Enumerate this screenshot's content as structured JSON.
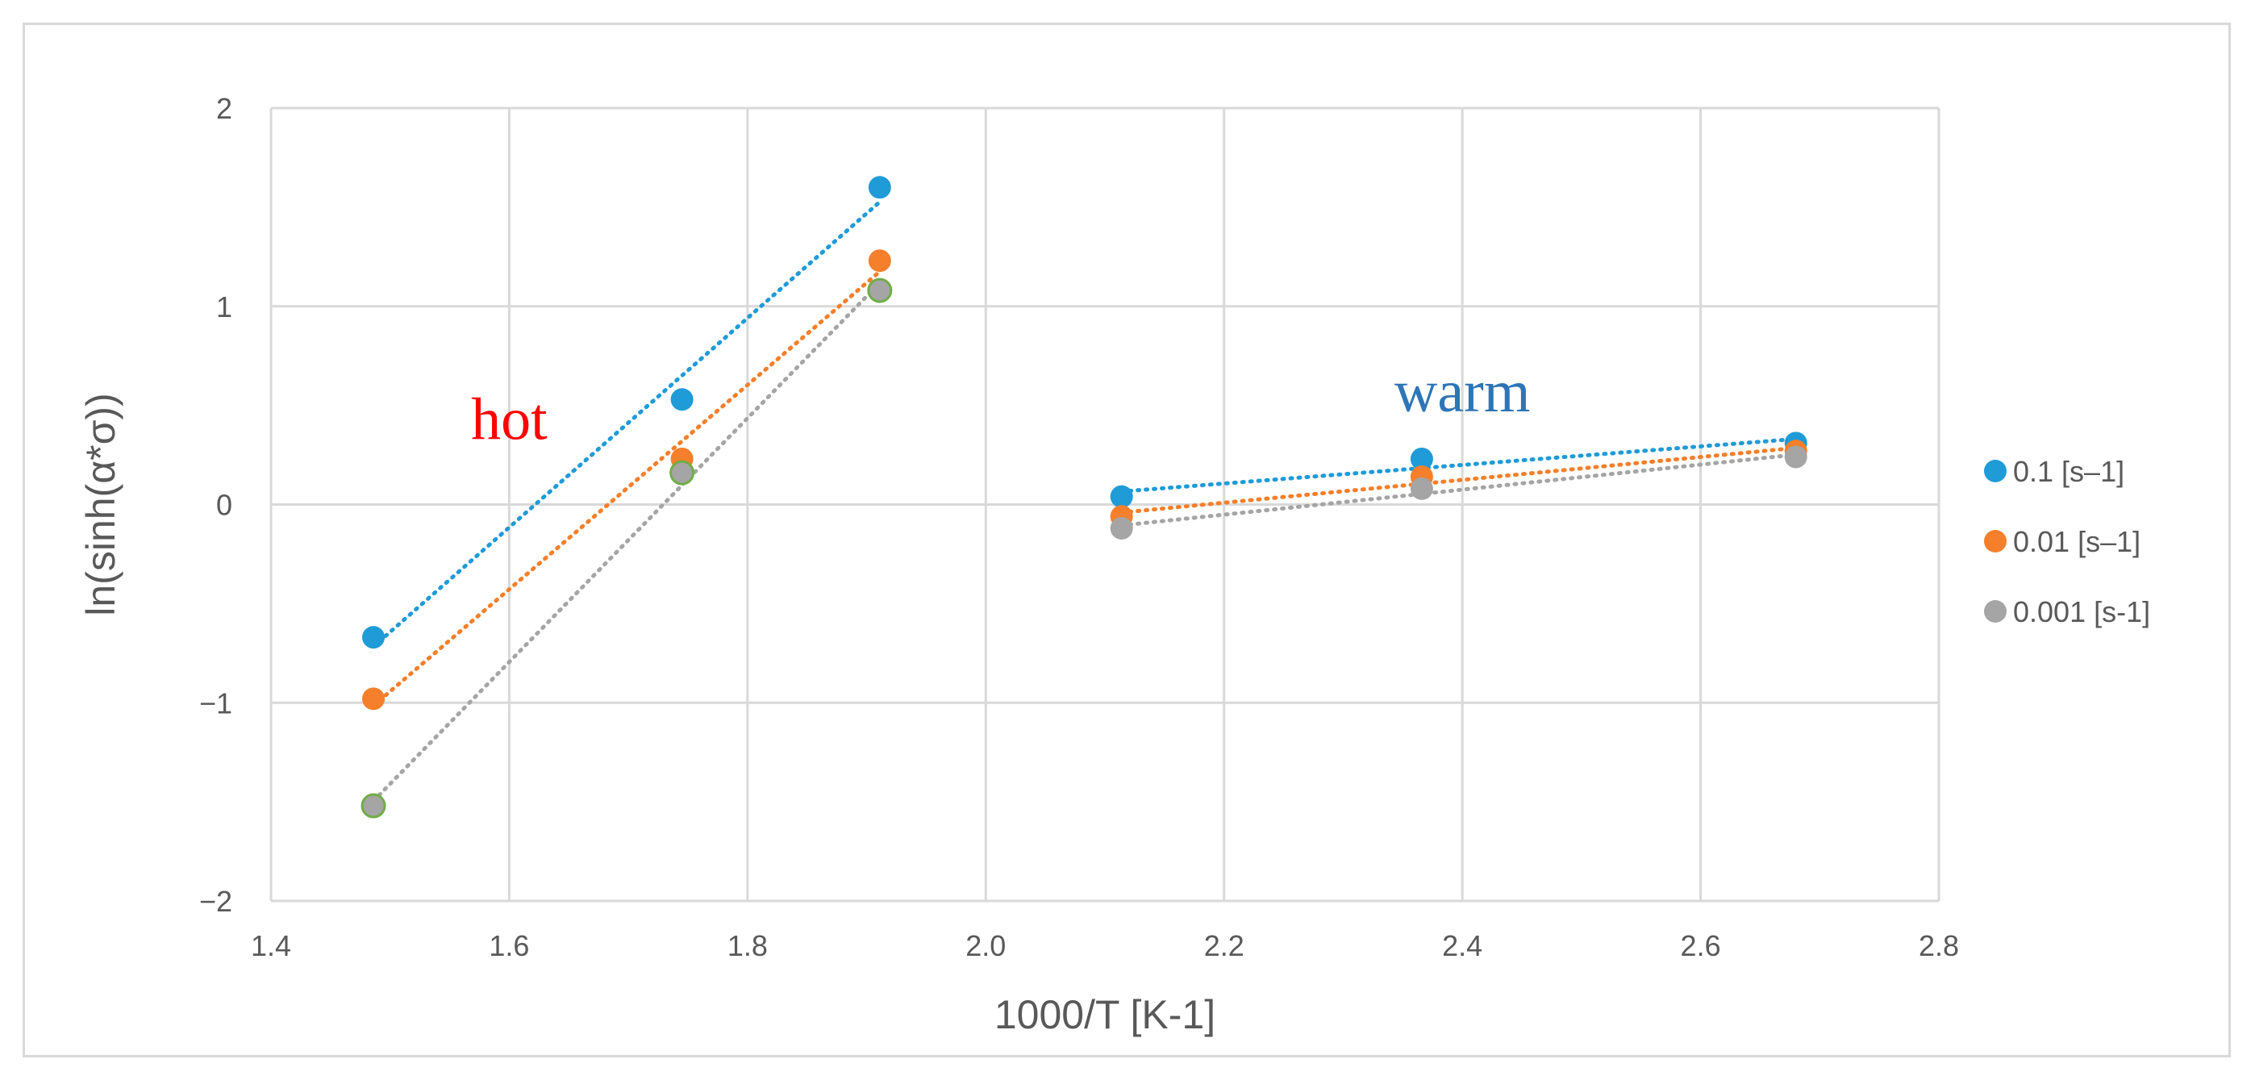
{
  "chart_data": {
    "type": "scatter",
    "title": "",
    "xlabel": "1000/T [K-1]",
    "ylabel": "ln(sinh(α*σ))",
    "xlim": [
      1.4,
      2.8
    ],
    "ylim": [
      -2,
      2
    ],
    "x_ticks": [
      "1.4",
      "1.6",
      "1.8",
      "2.0",
      "2.2",
      "2.4",
      "2.6",
      "2.8"
    ],
    "y_ticks": [
      "−2",
      "−1",
      "0",
      "1",
      "2"
    ],
    "grid": true,
    "legend_position": "right",
    "series": [
      {
        "name": "0.1 [s–1]",
        "color": "#1f9bd7",
        "x": [
          1.486,
          1.745,
          1.911,
          2.114,
          2.366,
          2.68
        ],
        "y": [
          -0.67,
          0.53,
          1.6,
          0.04,
          0.23,
          0.31
        ]
      },
      {
        "name": "0.01 [s–1]",
        "color": "#f57f2a",
        "x": [
          1.486,
          1.745,
          1.911,
          2.114,
          2.366,
          2.68
        ],
        "y": [
          -0.98,
          0.23,
          1.23,
          -0.06,
          0.14,
          0.27
        ]
      },
      {
        "name": "0.001 [s-1]",
        "color": "#a5a5a5",
        "x": [
          1.486,
          1.745,
          1.911,
          2.114,
          2.366,
          2.68
        ],
        "y": [
          -1.52,
          0.16,
          1.08,
          -0.12,
          0.08,
          0.24
        ]
      }
    ],
    "trendline_groups": [
      {
        "label": "hot",
        "indices": [
          0,
          1,
          2
        ]
      },
      {
        "label": "warm",
        "indices": [
          3,
          4,
          5
        ]
      }
    ],
    "annotations": [
      {
        "text": "hot",
        "color": "#ff0000",
        "x": 1.6,
        "y": 0.33
      },
      {
        "text": "warm",
        "color": "#2e75b6",
        "x": 2.4,
        "y": 0.47
      }
    ]
  }
}
